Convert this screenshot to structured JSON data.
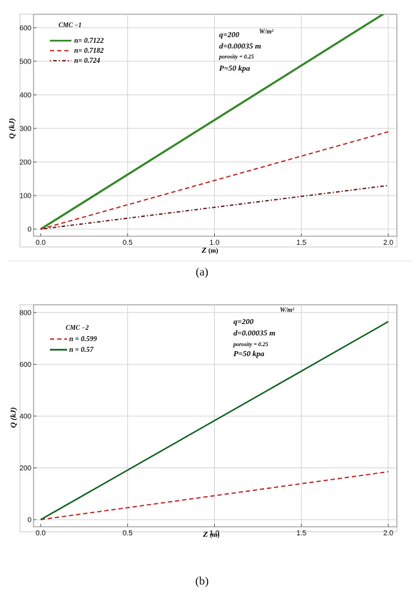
{
  "chart_data": [
    {
      "type": "line",
      "caption": "(a)",
      "legend_title": "CMC −1",
      "xlabel_symbol": "Z",
      "xlabel_unit": "(m)",
      "ylabel": "Q (kJ)",
      "xlim": [
        0,
        2.0
      ],
      "ylim": [
        0,
        640
      ],
      "x_ticks": [
        0.0,
        0.5,
        1.0,
        1.5,
        2.0
      ],
      "x_tick_labels": [
        "0.0",
        "0.5",
        "1.0",
        "1.5",
        "2.0"
      ],
      "y_ticks": [
        0,
        100,
        200,
        300,
        400,
        500,
        600
      ],
      "y_tick_labels": [
        "0",
        "100",
        "200",
        "300",
        "400",
        "500",
        "600"
      ],
      "grid": true,
      "legend_position": "top-left",
      "annotations": [
        "q=200",
        "W/m²",
        "d=0.00035 m",
        "porosity = 0.25",
        "P=50 kpa"
      ],
      "series": [
        {
          "name": "n= 0.7122",
          "color": "#3a8a2e",
          "style": "solid",
          "x": [
            0,
            2.0
          ],
          "y": [
            0,
            650
          ]
        },
        {
          "name": "n= 0.7182",
          "color": "#c0302a",
          "style": "dashed",
          "x": [
            0,
            2.0
          ],
          "y": [
            0,
            290
          ]
        },
        {
          "name": "n= 0.724",
          "color": "#6b1a1a",
          "style": "dashdot",
          "x": [
            0,
            2.0
          ],
          "y": [
            0,
            130
          ]
        }
      ]
    },
    {
      "type": "line",
      "caption": "(b)",
      "legend_title": "CMC −2",
      "xlabel_symbol": "Z",
      "xlabel_unit": "(m)",
      "ylabel": "Q (kJ)",
      "xlim": [
        0,
        2.0
      ],
      "ylim": [
        0,
        830
      ],
      "x_ticks": [
        0.0,
        0.5,
        1.0,
        1.5,
        2.0
      ],
      "x_tick_labels": [
        "0.0",
        "0.5",
        "1.0",
        "1.5",
        "2.0"
      ],
      "y_ticks": [
        0,
        200,
        400,
        600,
        800
      ],
      "y_tick_labels": [
        "0",
        "200",
        "400",
        "600",
        "800"
      ],
      "grid": true,
      "legend_position": "top-left",
      "annotations": [
        "q=200",
        "W/m²",
        "d=0.00035 m",
        "porosity = 0.25",
        "P=50 kpa"
      ],
      "series": [
        {
          "name": "n = 0.599",
          "color": "#c0302a",
          "style": "dashed",
          "x": [
            0,
            2.0
          ],
          "y": [
            0,
            185
          ]
        },
        {
          "name": "n = 0.57",
          "color": "#1f6b2e",
          "style": "solid",
          "x": [
            0,
            2.0
          ],
          "y": [
            0,
            765
          ]
        }
      ]
    }
  ]
}
